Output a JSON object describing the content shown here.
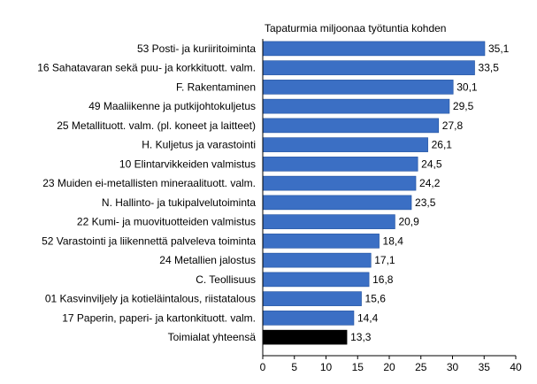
{
  "chart_data": {
    "type": "bar",
    "orientation": "horizontal",
    "title": "",
    "unit_label": "Tapaturmia miljoonaa työtuntia kohden",
    "categories": [
      "53 Posti- ja kuriiritoiminta",
      "16 Sahatavaran sekä puu- ja korkkituott. valm.",
      "F. Rakentaminen",
      "49 Maaliikenne ja putkijohtokuljetus",
      "25 Metallituott. valm. (pl. koneet ja laitteet)",
      "H. Kuljetus ja varastointi",
      "10 Elintarvikkeiden valmistus",
      "23 Muiden ei-metallisten mineraalituott. valm.",
      "N. Hallinto- ja tukipalvelutoiminta",
      "22 Kumi- ja muovituotteiden valmistus",
      "52 Varastointi ja liikennettä palveleva toiminta",
      "24 Metallien jalostus",
      "C. Teollisuus",
      "01 Kasvinviljely ja kotieläintalous, riistatalous",
      "17 Paperin, paperi- ja kartonkituott. valm.",
      "Toimialat yhteensä"
    ],
    "values": [
      35.1,
      33.5,
      30.1,
      29.5,
      27.8,
      26.1,
      24.5,
      24.2,
      23.5,
      20.9,
      18.4,
      17.1,
      16.8,
      15.6,
      14.4,
      13.3
    ],
    "value_labels": [
      "35,1",
      "33,5",
      "30,1",
      "29,5",
      "27,8",
      "26,1",
      "24,5",
      "24,2",
      "23,5",
      "20,9",
      "18,4",
      "17,1",
      "16,8",
      "15,6",
      "14,4",
      "13,3"
    ],
    "xlim": [
      0,
      40
    ],
    "xticks": [
      0,
      5,
      10,
      15,
      20,
      25,
      30,
      35,
      40
    ],
    "grid": false,
    "colors": {
      "bar": "#3b6fc4",
      "bar_edge": "#1f4f9e",
      "highlight_bar": "#000000",
      "text": "#000000"
    },
    "highlight_index": 15
  }
}
